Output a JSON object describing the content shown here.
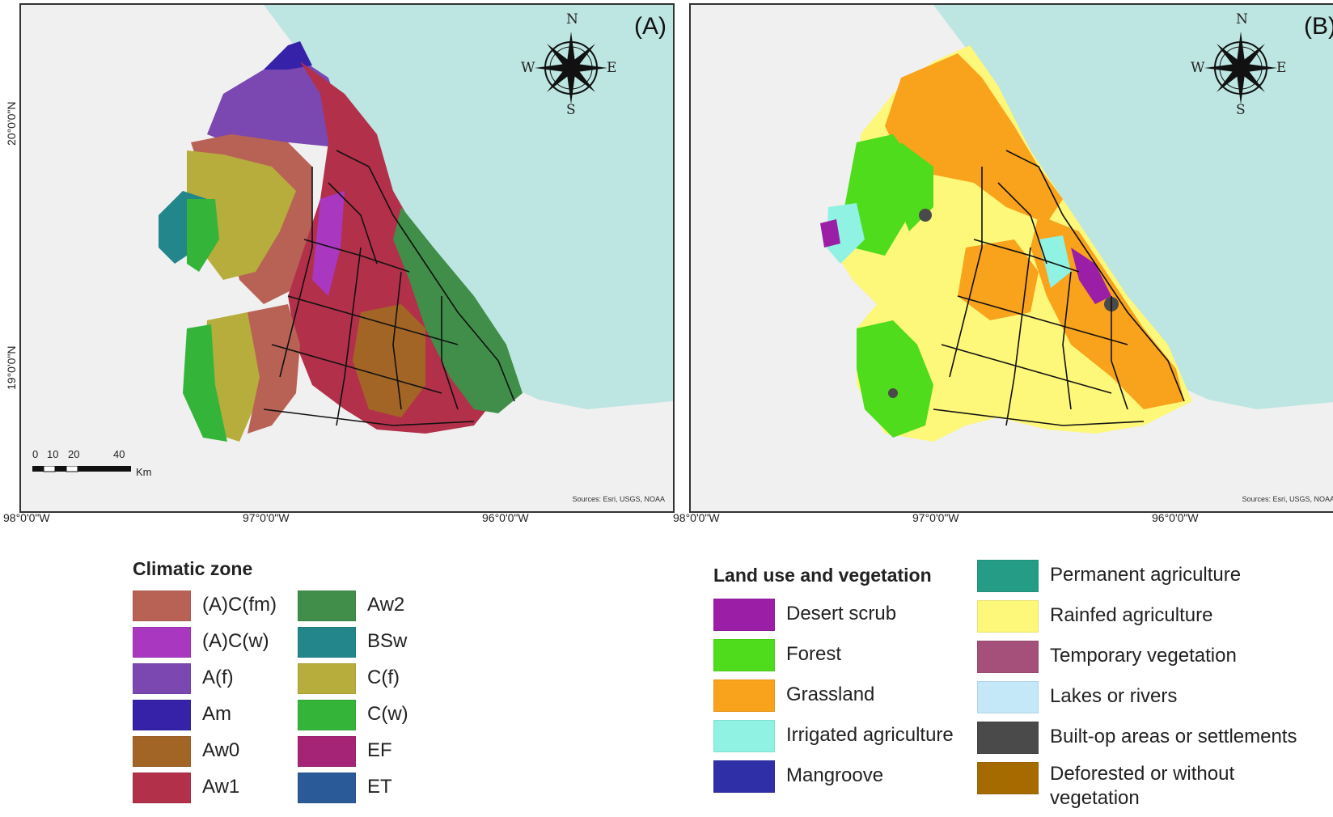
{
  "panel_a": {
    "label": "(A)",
    "sources": "Sources: Esri, USGS, NOAA",
    "compass": {
      "n": "N",
      "s": "S",
      "e": "E",
      "w": "W"
    },
    "lat_labels": [
      "20°0'0\"N",
      "19°0'0\"N"
    ],
    "lon_labels": [
      "98°0'0\"W",
      "97°0'0\"W",
      "96°0'0\"W"
    ],
    "scale": {
      "ticks": [
        "0",
        "10",
        "20",
        "40"
      ],
      "unit": "Km"
    }
  },
  "panel_b": {
    "label": "(B)",
    "sources": "Sources: Esri, USGS, NOAA",
    "compass": {
      "n": "N",
      "s": "S",
      "e": "E",
      "w": "W"
    },
    "lon_labels": [
      "98°0'0\"W",
      "97°0'0\"W",
      "96°0'0\"W"
    ]
  },
  "colors": {
    "sea": "#bde5e1",
    "terrain": "#f0f0f0",
    "boundary": "#111111"
  },
  "climatic_legend": {
    "title": "Climatic zone",
    "items": [
      {
        "label": "(A)C(fm)",
        "color": "#b86256"
      },
      {
        "label": "(A)C(w)",
        "color": "#a937c0"
      },
      {
        "label": "A(f)",
        "color": "#7a48b0"
      },
      {
        "label": "Am",
        "color": "#3522a9"
      },
      {
        "label": "Aw0",
        "color": "#a36526"
      },
      {
        "label": "Aw1",
        "color": "#b3304a"
      },
      {
        "label": "Aw2",
        "color": "#408e49"
      },
      {
        "label": "BSw",
        "color": "#22868a"
      },
      {
        "label": "C(f)",
        "color": "#b7ad3c"
      },
      {
        "label": "C(w)",
        "color": "#35b43a"
      },
      {
        "label": "EF",
        "color": "#a52476"
      },
      {
        "label": "ET",
        "color": "#2a5b98"
      }
    ]
  },
  "landuse_legend": {
    "title": "Land use and vegetation",
    "items": [
      {
        "label": "Desert  scrub",
        "color": "#9a1fa6"
      },
      {
        "label": "Forest",
        "color": "#4fdc1c"
      },
      {
        "label": "Grassland",
        "color": "#f9a21b"
      },
      {
        "label": "Irrigated agriculture",
        "color": "#8ff2e3"
      },
      {
        "label": "Mangroove",
        "color": "#2f2fa8"
      },
      {
        "label": "Permanent agriculture",
        "color": "#259c86"
      },
      {
        "label": "Rainfed agriculture",
        "color": "#fdf77a"
      },
      {
        "label": "Temporary vegetation",
        "color": "#a4507a"
      },
      {
        "label": "Lakes or rivers",
        "color": "#c4e8f8"
      },
      {
        "label": "Built-op areas or settlements",
        "color": "#4a4a4a"
      },
      {
        "label": "Deforested or without vegetation",
        "color": "#a66b00"
      }
    ]
  }
}
